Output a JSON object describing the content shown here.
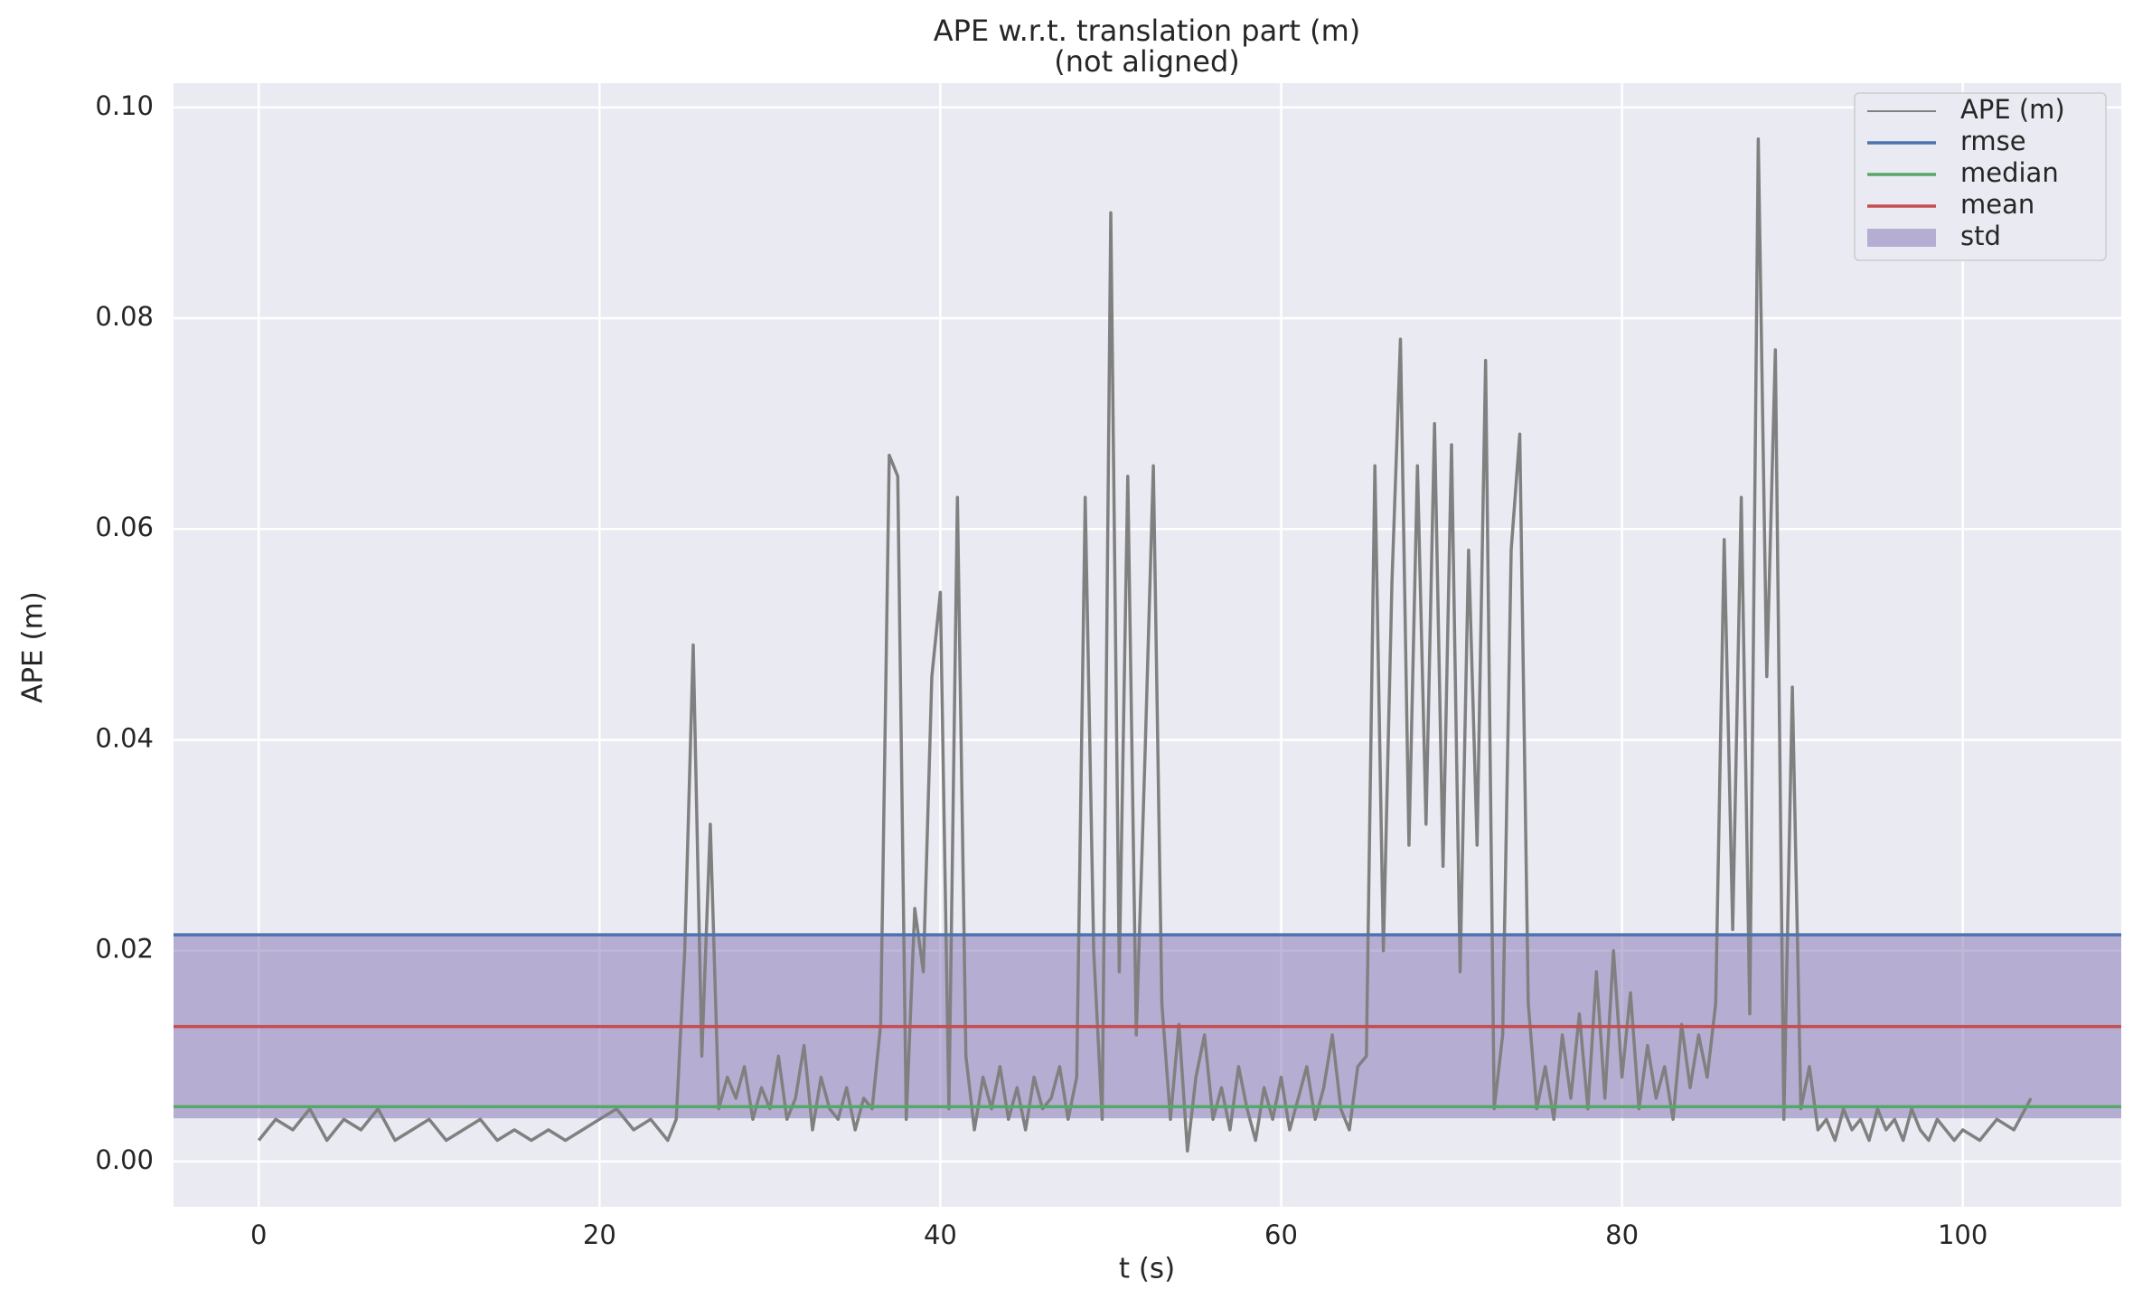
{
  "chart_data": {
    "type": "line",
    "title": "APE w.r.t. translation part (m)",
    "subtitle": "(not aligned)",
    "xlabel": "t (s)",
    "ylabel": "APE (m)",
    "xlim": [
      -5,
      109.3
    ],
    "ylim": [
      -0.0043,
      0.1023
    ],
    "xticks": [
      0,
      20,
      40,
      60,
      80,
      100
    ],
    "yticks": [
      {
        "value": 0,
        "label": "0.00"
      },
      {
        "value": 0.02,
        "label": "0.02"
      },
      {
        "value": 0.04,
        "label": "0.04"
      },
      {
        "value": 0.06,
        "label": "0.06"
      },
      {
        "value": 0.08,
        "label": "0.08"
      },
      {
        "value": 0.1,
        "label": "0.10"
      }
    ],
    "grid": true,
    "legend": "upper right",
    "x": [
      0,
      1,
      2,
      3,
      4,
      5,
      6,
      7,
      8,
      9,
      10,
      11,
      12,
      13,
      14,
      15,
      16,
      17,
      18,
      19,
      20,
      21,
      22,
      23,
      24,
      24.5,
      25,
      25.5,
      26,
      26.5,
      27,
      27.5,
      28,
      28.5,
      29,
      29.5,
      30,
      30.5,
      31,
      31.5,
      32,
      32.5,
      33,
      33.5,
      34,
      34.5,
      35,
      35.5,
      36,
      36.5,
      37,
      37.5,
      38,
      38.5,
      39,
      39.5,
      40,
      40.5,
      41,
      41.5,
      42,
      42.5,
      43,
      43.5,
      44,
      44.5,
      45,
      45.5,
      46,
      46.5,
      47,
      47.5,
      48,
      48.5,
      49,
      49.5,
      50,
      50.5,
      51,
      51.5,
      52,
      52.5,
      53,
      53.5,
      54,
      54.5,
      55,
      55.5,
      56,
      56.5,
      57,
      57.5,
      58,
      58.5,
      59,
      59.5,
      60,
      60.5,
      61,
      61.5,
      62,
      62.5,
      63,
      63.5,
      64,
      64.5,
      65,
      65.5,
      66,
      66.5,
      67,
      67.5,
      68,
      68.5,
      69,
      69.5,
      70,
      70.5,
      71,
      71.5,
      72,
      72.5,
      73,
      73.5,
      74,
      74.5,
      75,
      75.5,
      76,
      76.5,
      77,
      77.5,
      78,
      78.5,
      79,
      79.5,
      80,
      80.5,
      81,
      81.5,
      82,
      82.5,
      83,
      83.5,
      84,
      84.5,
      85,
      85.5,
      86,
      86.5,
      87,
      87.5,
      88,
      88.5,
      89,
      89.5,
      90,
      90.5,
      91,
      91.5,
      92,
      92.5,
      93,
      93.5,
      94,
      94.5,
      95,
      95.5,
      96,
      96.5,
      97,
      97.5,
      98,
      98.5,
      99,
      99.5,
      100,
      101,
      102,
      103,
      104
    ],
    "series": [
      {
        "name": "APE (m)",
        "color": "#808080",
        "values": [
          0.002,
          0.004,
          0.003,
          0.005,
          0.002,
          0.004,
          0.003,
          0.005,
          0.002,
          0.003,
          0.004,
          0.002,
          0.003,
          0.004,
          0.002,
          0.003,
          0.002,
          0.003,
          0.002,
          0.003,
          0.004,
          0.005,
          0.003,
          0.004,
          0.002,
          0.004,
          0.02,
          0.049,
          0.01,
          0.032,
          0.005,
          0.008,
          0.006,
          0.009,
          0.004,
          0.007,
          0.005,
          0.01,
          0.004,
          0.006,
          0.011,
          0.003,
          0.008,
          0.005,
          0.004,
          0.007,
          0.003,
          0.006,
          0.005,
          0.013,
          0.067,
          0.065,
          0.004,
          0.024,
          0.018,
          0.046,
          0.054,
          0.005,
          0.063,
          0.01,
          0.003,
          0.008,
          0.005,
          0.009,
          0.004,
          0.007,
          0.003,
          0.008,
          0.005,
          0.006,
          0.009,
          0.004,
          0.008,
          0.063,
          0.02,
          0.004,
          0.09,
          0.018,
          0.065,
          0.012,
          0.038,
          0.066,
          0.015,
          0.004,
          0.013,
          0.001,
          0.008,
          0.012,
          0.004,
          0.007,
          0.003,
          0.009,
          0.005,
          0.002,
          0.007,
          0.004,
          0.008,
          0.003,
          0.006,
          0.009,
          0.004,
          0.007,
          0.012,
          0.005,
          0.003,
          0.009,
          0.01,
          0.066,
          0.02,
          0.055,
          0.078,
          0.03,
          0.066,
          0.032,
          0.07,
          0.028,
          0.068,
          0.018,
          0.058,
          0.03,
          0.076,
          0.005,
          0.012,
          0.058,
          0.069,
          0.015,
          0.005,
          0.009,
          0.004,
          0.012,
          0.006,
          0.014,
          0.005,
          0.018,
          0.006,
          0.02,
          0.008,
          0.016,
          0.005,
          0.011,
          0.006,
          0.009,
          0.004,
          0.013,
          0.007,
          0.012,
          0.008,
          0.015,
          0.059,
          0.022,
          0.063,
          0.014,
          0.097,
          0.046,
          0.077,
          0.004,
          0.045,
          0.005,
          0.009,
          0.003,
          0.004,
          0.002,
          0.005,
          0.003,
          0.004,
          0.002,
          0.005,
          0.003,
          0.004,
          0.002,
          0.005,
          0.003,
          0.002,
          0.004,
          0.003,
          0.002,
          0.003,
          0.002,
          0.004,
          0.003,
          0.006
        ]
      }
    ],
    "hlines": [
      {
        "name": "rmse",
        "color": "#4c72b0",
        "value": 0.0215
      },
      {
        "name": "median",
        "color": "#55a868",
        "value": 0.0052
      },
      {
        "name": "mean",
        "color": "#c44e52",
        "value": 0.0128
      }
    ],
    "std": {
      "name": "std",
      "color": "#8172b2",
      "value": 0.0087
    }
  }
}
